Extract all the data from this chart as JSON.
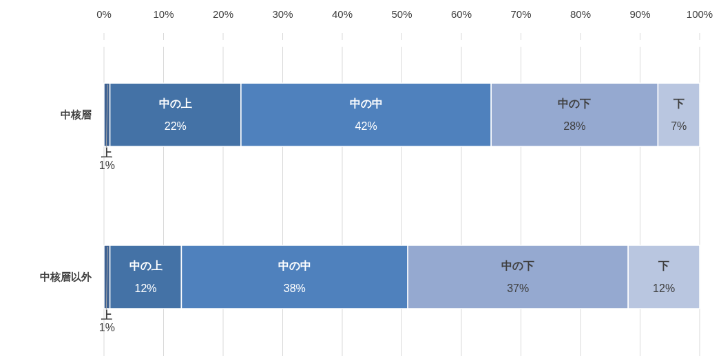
{
  "chart_data": {
    "type": "bar",
    "orientation": "horizontal",
    "stacked": true,
    "categories": [
      "中核層",
      "中核層以外"
    ],
    "series": [
      {
        "name": "上",
        "color": "#3d6192",
        "values": [
          1,
          1
        ],
        "value_labels": [
          "1%",
          "1%"
        ]
      },
      {
        "name": "中の上",
        "color": "#4472a6",
        "values": [
          22,
          12
        ],
        "value_labels": [
          "22%",
          "12%"
        ]
      },
      {
        "name": "中の中",
        "color": "#4f81bd",
        "values": [
          42,
          38
        ],
        "value_labels": [
          "42%",
          "38%"
        ]
      },
      {
        "name": "中の下",
        "color": "#95a9d0",
        "values": [
          28,
          37
        ],
        "value_labels": [
          "28%",
          "37%"
        ]
      },
      {
        "name": "下",
        "color": "#b9c6e0",
        "values": [
          7,
          12
        ],
        "value_labels": [
          "7%",
          "12%"
        ]
      }
    ],
    "xlim": [
      0,
      100
    ],
    "xticks": [
      {
        "value": 0,
        "label": "0%"
      },
      {
        "value": 10,
        "label": "10%"
      },
      {
        "value": 20,
        "label": "20%"
      },
      {
        "value": 30,
        "label": "30%"
      },
      {
        "value": 40,
        "label": "40%"
      },
      {
        "value": 50,
        "label": "50%"
      },
      {
        "value": 60,
        "label": "60%"
      },
      {
        "value": 70,
        "label": "70%"
      },
      {
        "value": 80,
        "label": "80%"
      },
      {
        "value": 90,
        "label": "90%"
      },
      {
        "value": 100,
        "label": "100%"
      }
    ],
    "grid": "x"
  }
}
